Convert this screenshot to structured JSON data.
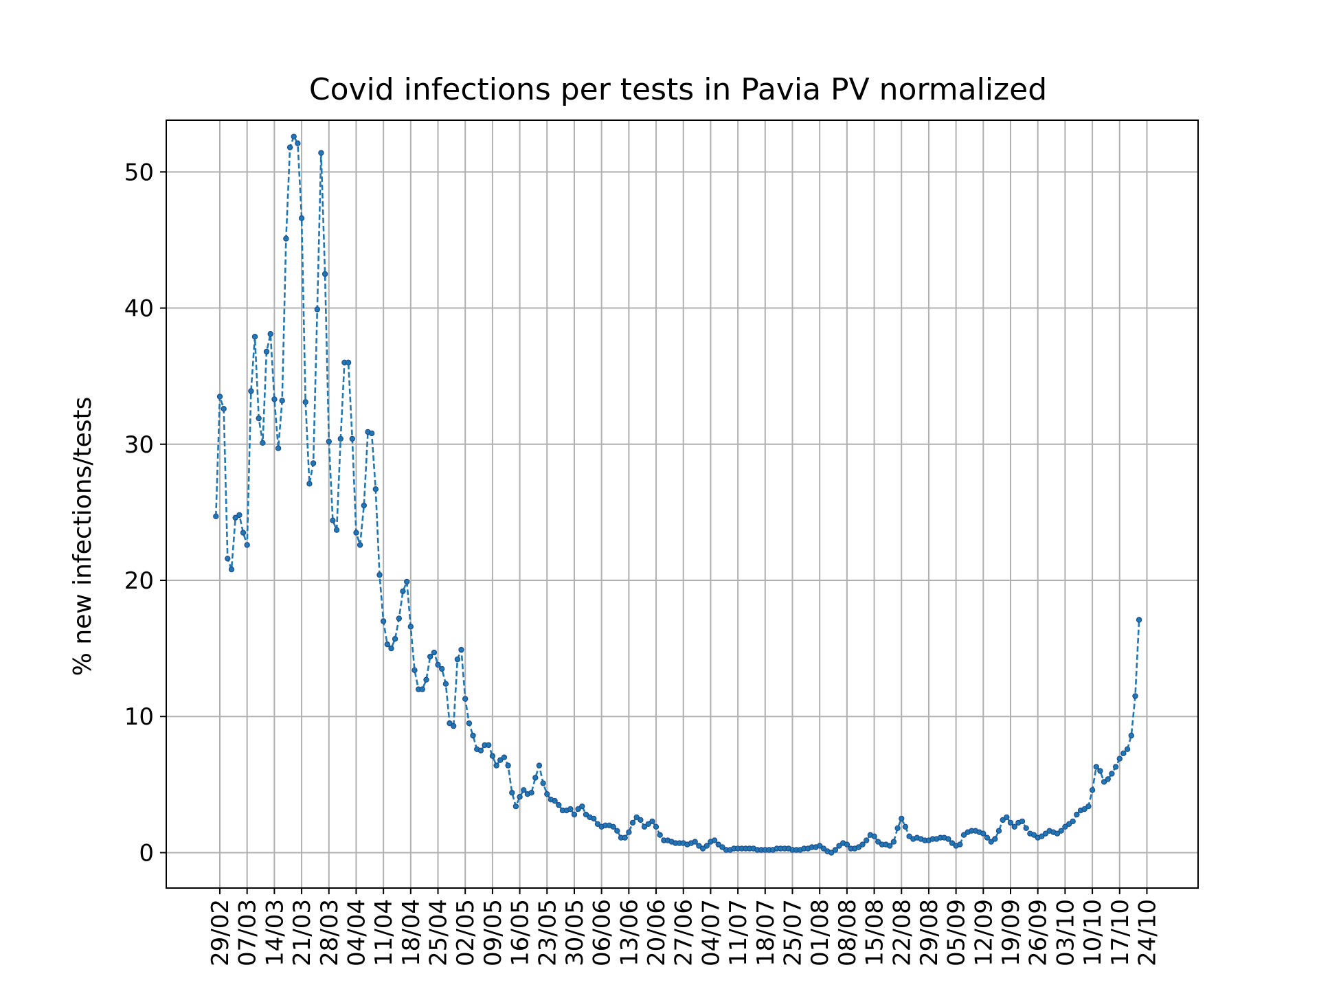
{
  "chart_data": {
    "type": "line",
    "title": "Covid infections per tests in Pavia PV normalized",
    "xlabel": "",
    "ylabel": "% new infections/tests",
    "ylim": [
      -2.6,
      53.8
    ],
    "yticks": [
      0,
      10,
      20,
      30,
      40,
      50
    ],
    "x_start": "28/02",
    "xticks": [
      "29/02",
      "07/03",
      "14/03",
      "21/03",
      "28/03",
      "04/04",
      "11/04",
      "18/04",
      "25/04",
      "02/05",
      "09/05",
      "16/05",
      "23/05",
      "30/05",
      "06/06",
      "13/06",
      "20/06",
      "27/06",
      "04/07",
      "11/07",
      "18/07",
      "25/07",
      "01/08",
      "08/08",
      "15/08",
      "22/08",
      "29/08",
      "05/09",
      "12/09",
      "19/09",
      "26/09",
      "03/10",
      "10/10",
      "17/10",
      "24/10"
    ],
    "grid": true,
    "series": [
      {
        "name": "",
        "color": "#1f77b4",
        "line_style": "dashed",
        "marker_color": "#1f4e8c",
        "values": [
          24.7,
          33.5,
          32.6,
          21.6,
          20.8,
          24.6,
          24.8,
          23.5,
          22.6,
          33.9,
          37.9,
          31.9,
          30.1,
          36.8,
          38.1,
          33.3,
          29.7,
          33.2,
          45.1,
          51.8,
          52.6,
          52.1,
          46.6,
          33.1,
          27.1,
          28.6,
          39.9,
          51.4,
          42.5,
          30.2,
          24.4,
          23.7,
          30.4,
          36.0,
          36.0,
          30.4,
          23.5,
          22.6,
          25.5,
          30.9,
          30.8,
          26.7,
          20.4,
          17.0,
          15.3,
          15.0,
          15.7,
          17.2,
          19.2,
          19.9,
          16.6,
          13.4,
          12.0,
          12.0,
          12.7,
          14.4,
          14.7,
          13.8,
          13.5,
          12.4,
          9.5,
          9.3,
          14.2,
          14.9,
          11.3,
          9.5,
          8.6,
          7.6,
          7.5,
          7.9,
          7.9,
          7.1,
          6.4,
          6.8,
          7.0,
          6.4,
          4.4,
          3.4,
          4.1,
          4.6,
          4.3,
          4.4,
          5.5,
          6.4,
          5.1,
          4.3,
          3.9,
          3.8,
          3.5,
          3.1,
          3.1,
          3.2,
          2.8,
          3.2,
          3.4,
          2.8,
          2.6,
          2.5,
          2.1,
          1.9,
          2.0,
          2.0,
          1.9,
          1.6,
          1.1,
          1.1,
          1.5,
          2.2,
          2.6,
          2.4,
          1.9,
          2.1,
          2.3,
          1.9,
          1.3,
          0.9,
          0.9,
          0.8,
          0.7,
          0.7,
          0.7,
          0.6,
          0.7,
          0.8,
          0.5,
          0.3,
          0.5,
          0.8,
          0.9,
          0.6,
          0.4,
          0.2,
          0.2,
          0.3,
          0.3,
          0.3,
          0.3,
          0.3,
          0.3,
          0.2,
          0.2,
          0.2,
          0.2,
          0.2,
          0.3,
          0.3,
          0.3,
          0.3,
          0.2,
          0.2,
          0.2,
          0.3,
          0.3,
          0.4,
          0.4,
          0.5,
          0.3,
          0.1,
          0.0,
          0.2,
          0.5,
          0.7,
          0.6,
          0.3,
          0.3,
          0.4,
          0.6,
          0.9,
          1.3,
          1.2,
          0.8,
          0.6,
          0.6,
          0.5,
          0.8,
          1.8,
          2.5,
          1.9,
          1.2,
          1.0,
          1.1,
          1.0,
          0.9,
          0.9,
          1.0,
          1.0,
          1.1,
          1.1,
          1.0,
          0.7,
          0.5,
          0.6,
          1.3,
          1.5,
          1.6,
          1.6,
          1.5,
          1.4,
          1.1,
          0.8,
          1.0,
          1.6,
          2.4,
          2.6,
          2.2,
          1.9,
          2.2,
          2.3,
          1.8,
          1.4,
          1.3,
          1.1,
          1.2,
          1.4,
          1.6,
          1.5,
          1.4,
          1.6,
          1.9,
          2.1,
          2.3,
          2.8,
          3.1,
          3.2,
          3.4,
          4.6,
          6.3,
          6.0,
          5.2,
          5.4,
          5.8,
          6.3,
          6.9,
          7.3,
          7.6,
          8.6,
          11.5,
          17.1
        ]
      }
    ]
  }
}
